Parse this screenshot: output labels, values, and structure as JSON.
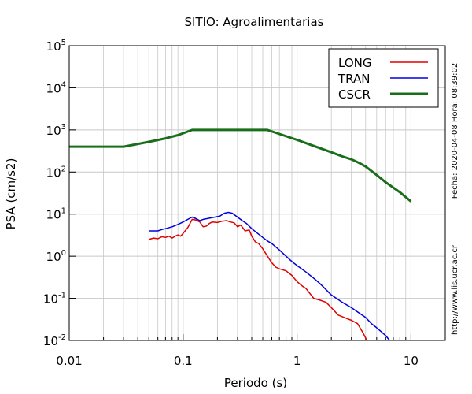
{
  "chart_data": {
    "type": "line",
    "title": "SITIO: Agroalimentarias",
    "xlabel": "Periodo (s)",
    "ylabel": "PSA (cm/s2)",
    "xscale": "log",
    "yscale": "log",
    "xlim": [
      0.01,
      20
    ],
    "ylim": [
      0.01,
      100000
    ],
    "grid": true,
    "legend_position": "top-right",
    "x_ticks": [
      {
        "value": 0.01,
        "label": "0.01"
      },
      {
        "value": 0.1,
        "label": "0.1"
      },
      {
        "value": 1,
        "label": "1"
      },
      {
        "value": 10,
        "label": "10"
      }
    ],
    "y_ticks": [
      {
        "value": 0.01,
        "base": "10",
        "exp": "-2"
      },
      {
        "value": 0.1,
        "base": "10",
        "exp": "-1"
      },
      {
        "value": 1,
        "base": "10",
        "exp": "0"
      },
      {
        "value": 10,
        "base": "10",
        "exp": "1"
      },
      {
        "value": 100,
        "base": "10",
        "exp": "2"
      },
      {
        "value": 1000,
        "base": "10",
        "exp": "3"
      },
      {
        "value": 10000,
        "base": "10",
        "exp": "4"
      },
      {
        "value": 100000,
        "base": "10",
        "exp": "5"
      }
    ],
    "series": [
      {
        "name": "LONG",
        "color": "#e00000",
        "x": [
          0.05,
          0.055,
          0.06,
          0.065,
          0.07,
          0.075,
          0.08,
          0.085,
          0.09,
          0.095,
          0.1,
          0.11,
          0.12,
          0.13,
          0.14,
          0.15,
          0.16,
          0.17,
          0.18,
          0.2,
          0.22,
          0.24,
          0.26,
          0.28,
          0.3,
          0.32,
          0.35,
          0.38,
          0.4,
          0.43,
          0.46,
          0.5,
          0.55,
          0.6,
          0.65,
          0.7,
          0.8,
          0.9,
          1.0,
          1.1,
          1.2,
          1.4,
          1.6,
          1.8,
          2.0,
          2.3,
          2.6,
          3.0,
          3.4,
          3.8,
          4.1
        ],
        "y": [
          2.5,
          2.7,
          2.6,
          2.9,
          2.8,
          3.0,
          2.7,
          3.0,
          3.2,
          3.0,
          3.5,
          4.8,
          7.5,
          7.2,
          6.5,
          5.0,
          5.2,
          6.0,
          6.5,
          6.3,
          6.8,
          7.0,
          6.5,
          6.2,
          5.0,
          5.5,
          4.0,
          4.2,
          3.0,
          2.2,
          2.0,
          1.5,
          1.0,
          0.7,
          0.55,
          0.5,
          0.45,
          0.35,
          0.25,
          0.2,
          0.17,
          0.1,
          0.09,
          0.08,
          0.06,
          0.04,
          0.035,
          0.03,
          0.025,
          0.015,
          0.01
        ]
      },
      {
        "name": "TRAN",
        "color": "#0000e0",
        "x": [
          0.05,
          0.06,
          0.065,
          0.07,
          0.08,
          0.09,
          0.1,
          0.11,
          0.12,
          0.13,
          0.14,
          0.15,
          0.17,
          0.19,
          0.21,
          0.23,
          0.25,
          0.27,
          0.3,
          0.33,
          0.36,
          0.4,
          0.45,
          0.5,
          0.55,
          0.6,
          0.7,
          0.8,
          0.9,
          1.0,
          1.2,
          1.4,
          1.6,
          1.8,
          2.0,
          2.5,
          3.0,
          3.5,
          4.0,
          4.5,
          5.0,
          5.5,
          6.0,
          6.5
        ],
        "y": [
          4.0,
          4.0,
          4.3,
          4.5,
          5.0,
          5.7,
          6.5,
          7.5,
          8.5,
          7.8,
          7.0,
          7.5,
          8.0,
          8.5,
          9.0,
          10.5,
          11.0,
          10.5,
          8.5,
          7.0,
          6.0,
          4.5,
          3.5,
          2.8,
          2.3,
          2.0,
          1.4,
          1.0,
          0.75,
          0.6,
          0.42,
          0.3,
          0.22,
          0.16,
          0.12,
          0.08,
          0.06,
          0.045,
          0.035,
          0.025,
          0.02,
          0.016,
          0.013,
          0.01
        ]
      },
      {
        "name": "CSCR",
        "color": "#1a6e1a",
        "x": [
          0.01,
          0.03,
          0.05,
          0.07,
          0.09,
          0.12,
          0.2,
          0.3,
          0.55,
          0.7,
          1.0,
          1.5,
          2.0,
          2.5,
          3.0,
          3.5,
          4.0,
          5.0,
          6.0,
          8.0,
          10.0
        ],
        "y": [
          400,
          400,
          520,
          630,
          750,
          1000,
          1000,
          1000,
          1000,
          800,
          580,
          390,
          295,
          235,
          200,
          165,
          135,
          85,
          57,
          33,
          20
        ]
      }
    ],
    "side_labels": {
      "timestamp": "Fecha: 2020-04-08 Hora: 08:39:02",
      "url": "http://www.lis.ucr.ac.cr"
    }
  }
}
